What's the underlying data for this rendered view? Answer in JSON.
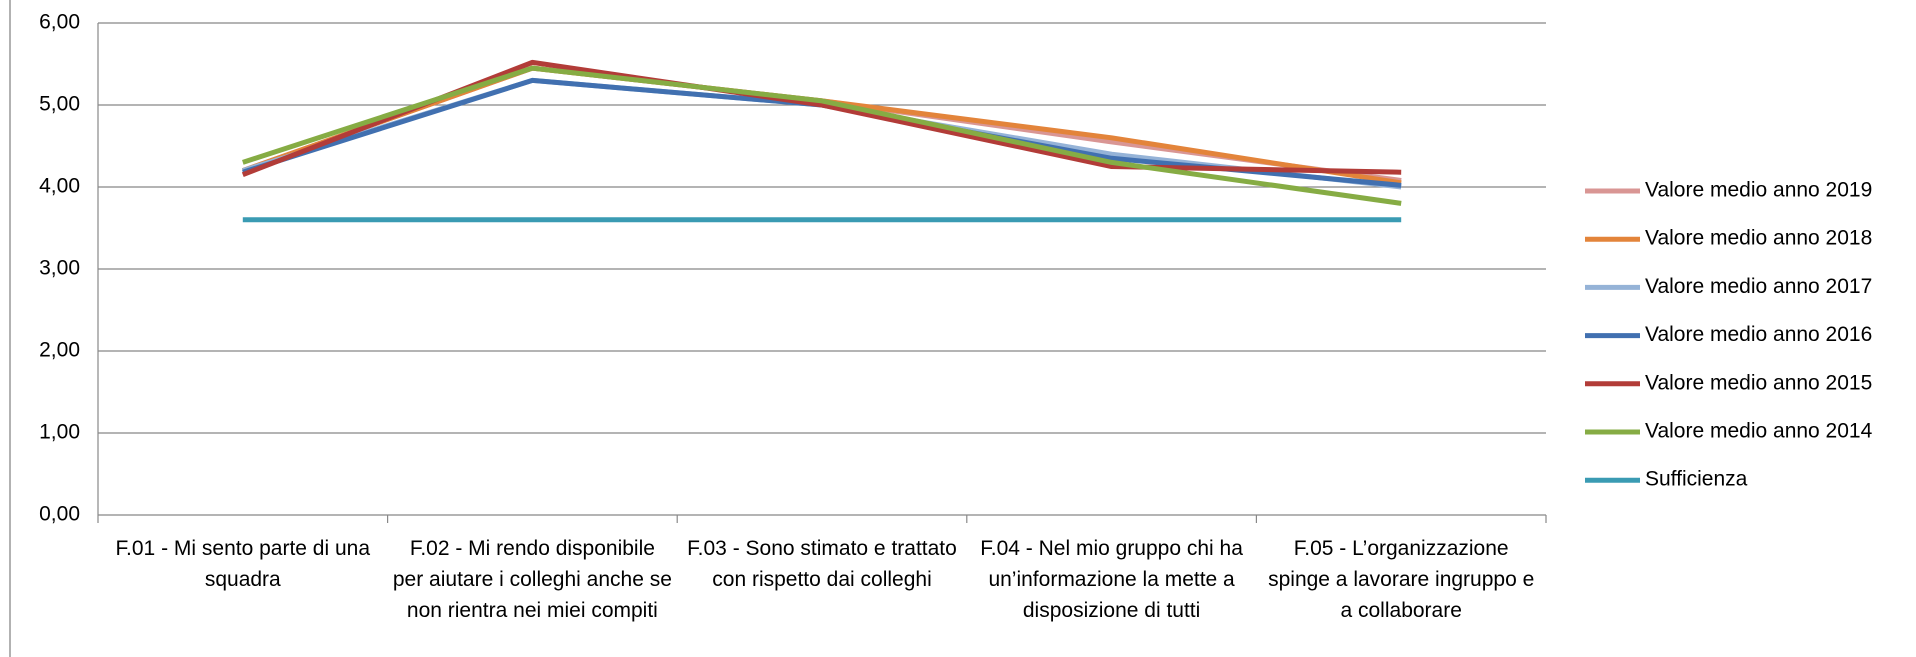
{
  "chart_data": {
    "type": "line",
    "categories": [
      "F.01 - Mi sento parte di una squadra",
      "F.02 - Mi rendo disponibile per aiutare i colleghi anche se non rientra nei miei compiti",
      "F.03 - Sono stimato e trattato con rispetto dai colleghi",
      "F.04 - Nel mio gruppo chi ha un’informazione la mette a disposizione di tutti",
      "F.05 - L’organizzazione spinge a lavorare ingruppo e a collaborare"
    ],
    "series": [
      {
        "name": "Valore medio anno 2019",
        "color": "#d99694",
        "values": [
          4.2,
          5.45,
          5.05,
          4.55,
          4.08
        ]
      },
      {
        "name": "Valore medio anno 2018",
        "color": "#e3843a",
        "values": [
          4.2,
          5.45,
          5.05,
          4.6,
          4.05
        ]
      },
      {
        "name": "Valore medio anno 2017",
        "color": "#95b3d7",
        "values": [
          4.2,
          5.3,
          5.0,
          4.4,
          4.0
        ]
      },
      {
        "name": "Valore medio anno 2016",
        "color": "#4170b0",
        "values": [
          4.18,
          5.3,
          5.0,
          4.35,
          4.02
        ]
      },
      {
        "name": "Valore medio anno 2015",
        "color": "#b23c38",
        "values": [
          4.15,
          5.52,
          5.0,
          4.25,
          4.18
        ]
      },
      {
        "name": "Valore medio anno 2014",
        "color": "#86ac44",
        "values": [
          4.3,
          5.45,
          5.05,
          4.3,
          3.8
        ]
      },
      {
        "name": "Sufficienza",
        "color": "#3a9bb3",
        "values": [
          3.6,
          3.6,
          3.6,
          3.6,
          3.6
        ]
      }
    ],
    "ylim": [
      0,
      6
    ],
    "yticks": [
      {
        "value": 0,
        "label": "0,00"
      },
      {
        "value": 1,
        "label": "1,00"
      },
      {
        "value": 2,
        "label": "2,00"
      },
      {
        "value": 3,
        "label": "3,00"
      },
      {
        "value": 4,
        "label": "4,00"
      },
      {
        "value": 5,
        "label": "5,00"
      },
      {
        "value": 6,
        "label": "6,00"
      }
    ],
    "grid": true,
    "legend": "right"
  }
}
